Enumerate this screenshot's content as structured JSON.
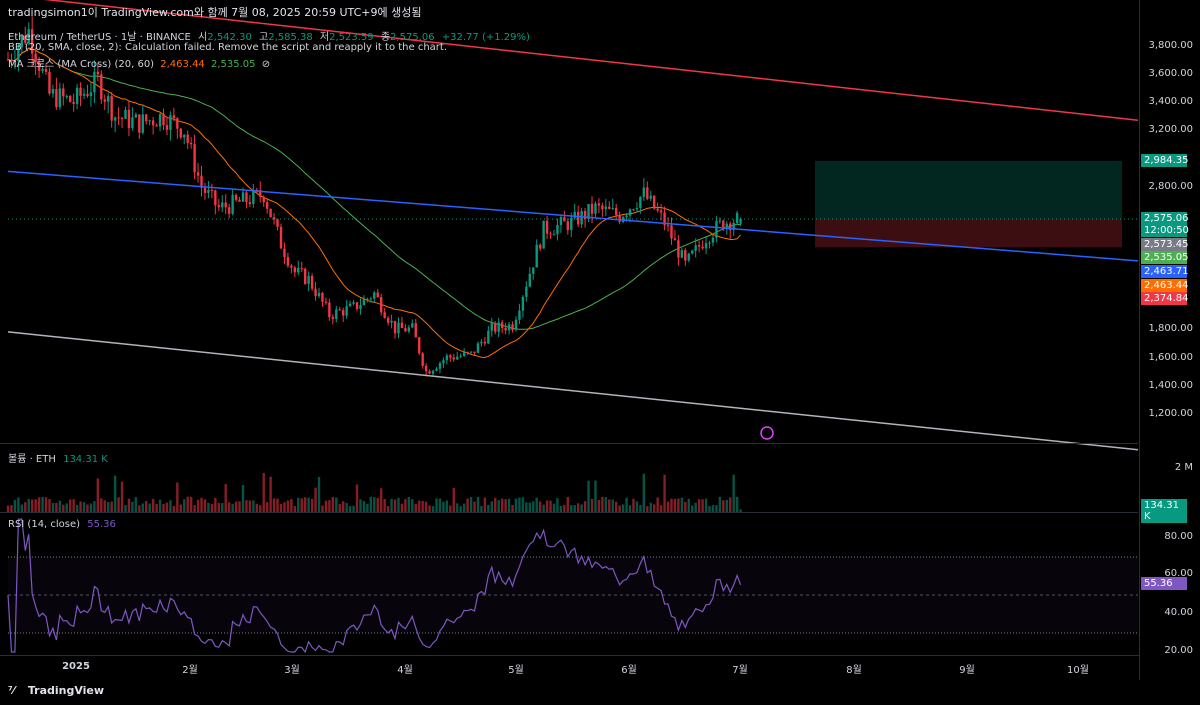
{
  "header": {
    "title": "tradingsimon1이 TradingView.com와 함께 7월 08, 2025 20:59 UTC+9에 생성됨"
  },
  "legend": {
    "symbol": "Ethereum / TetherUS · 1날 · BINANCE",
    "o_label": "시",
    "o_value": "2,542.30",
    "h_label": "고",
    "h_value": "2,585.38",
    "l_label": "저",
    "l_value": "2,523.59",
    "c_label": "종",
    "c_value": "2,575.06",
    "change": "+32.77 (+1.29%)",
    "bb": "BB (20, SMA, close, 2): Calculation failed. Remove the script and reapply it to the chart.",
    "ma_name": "MA 크로스 (MA Cross) (20, 60)",
    "ma_fast": "2,463.44",
    "ma_slow": "2,535.05",
    "ma_suffix": "⊘"
  },
  "volume_legend": {
    "name": "볼륨 · ETH",
    "value": "134.31 K"
  },
  "rsi_legend": {
    "name": "RSI (14, close)",
    "value": "55.36"
  },
  "price_axis": {
    "ticks": [
      "3,800.00",
      "3,600.00",
      "3,400.00",
      "3,200.00",
      "2,800.00",
      "1,800.00",
      "1,600.00",
      "1,400.00",
      "1,200.00"
    ],
    "badges": [
      {
        "text": "2,984.35",
        "color": "#089981"
      },
      {
        "text": "2,575.06",
        "color": "#089981"
      },
      {
        "text": "12:00:50",
        "color": "#089981"
      },
      {
        "text": "2,573.45",
        "color": "#787b86"
      },
      {
        "text": "2,535.05",
        "color": "#4caf50"
      },
      {
        "text": "2,463.71",
        "color": "#2962ff"
      },
      {
        "text": "2,463.44",
        "color": "#ff6d00"
      },
      {
        "text": "2,374.84",
        "color": "#f23645"
      }
    ]
  },
  "volume_axis": {
    "tick": "2 M",
    "badge": "134.31 K"
  },
  "rsi_axis": {
    "ticks": [
      "80.00",
      "60.00",
      "40.00",
      "20.00"
    ],
    "badge": "55.36"
  },
  "time_axis": {
    "labels": [
      "2025",
      "2월",
      "3월",
      "4월",
      "5월",
      "6월",
      "7월",
      "8월",
      "9월",
      "10월"
    ]
  },
  "footer": {
    "brand": "TradingView"
  },
  "colors": {
    "up": "#089981",
    "down": "#f23645",
    "ma_fast": "#ff6d00",
    "ma_slow": "#4caf50",
    "blue_trend": "#2962ff",
    "red_trend": "#f23645",
    "gray_trend": "#b2b5be",
    "rsi": "#7e57c2"
  },
  "chart_data": [
    {
      "type": "candlestick",
      "title": "Ethereum / TetherUS · 1날 · BINANCE",
      "ylim": [
        1100,
        3950
      ],
      "x_range": [
        "2024-12-08",
        "2025-10-31"
      ],
      "close_series": [
        [
          "2024-12-08",
          3700
        ],
        [
          "2024-12-14",
          3900
        ],
        [
          "2024-12-20",
          3450
        ],
        [
          "2024-12-27",
          3400
        ],
        [
          "2025-01-03",
          3550
        ],
        [
          "2025-01-08",
          3300
        ],
        [
          "2025-01-15",
          3250
        ],
        [
          "2025-01-22",
          3300
        ],
        [
          "2025-01-28",
          3200
        ],
        [
          "2025-02-02",
          2800
        ],
        [
          "2025-02-07",
          2650
        ],
        [
          "2025-02-14",
          2700
        ],
        [
          "2025-02-20",
          2750
        ],
        [
          "2025-02-25",
          2400
        ],
        [
          "2025-03-01",
          2200
        ],
        [
          "2025-03-05",
          2150
        ],
        [
          "2025-03-11",
          1900
        ],
        [
          "2025-03-18",
          1950
        ],
        [
          "2025-03-24",
          2050
        ],
        [
          "2025-03-30",
          1800
        ],
        [
          "2025-04-04",
          1800
        ],
        [
          "2025-04-08",
          1500
        ],
        [
          "2025-04-14",
          1600
        ],
        [
          "2025-04-21",
          1620
        ],
        [
          "2025-04-27",
          1800
        ],
        [
          "2025-05-03",
          1830
        ],
        [
          "2025-05-08",
          2200
        ],
        [
          "2025-05-12",
          2500
        ],
        [
          "2025-05-20",
          2550
        ],
        [
          "2025-05-27",
          2650
        ],
        [
          "2025-06-03",
          2600
        ],
        [
          "2025-06-10",
          2750
        ],
        [
          "2025-06-16",
          2550
        ],
        [
          "2025-06-22",
          2250
        ],
        [
          "2025-06-28",
          2450
        ],
        [
          "2025-07-03",
          2550
        ],
        [
          "2025-07-08",
          2575
        ]
      ],
      "last": {
        "open": 2542.3,
        "high": 2585.38,
        "low": 2523.59,
        "close": 2575.06,
        "change": 32.77,
        "change_pct": 1.29
      },
      "ma_cross": {
        "fast_period": 20,
        "slow_period": 60,
        "fast_last": 2463.44,
        "slow_last": 2535.05
      },
      "trendlines": [
        {
          "color": "red",
          "from": [
            "2024-12-08",
            4150
          ],
          "to": [
            "2025-10-31",
            3270
          ]
        },
        {
          "color": "blue",
          "from": [
            "2024-12-08",
            2910
          ],
          "to": [
            "2025-10-31",
            2280
          ]
        },
        {
          "color": "gray",
          "from": [
            "2024-12-08",
            1780
          ],
          "to": [
            "2025-10-31",
            950
          ]
        }
      ],
      "position_box": {
        "entry": 2575.06,
        "target": 2984.35,
        "stop": 2374.84
      }
    },
    {
      "type": "bar",
      "title": "볼륨 · ETH",
      "last": 134310,
      "ylim": [
        0,
        3000000
      ]
    },
    {
      "type": "line",
      "title": "RSI (14, close)",
      "ylim": [
        20,
        90
      ],
      "levels": [
        70,
        50,
        30
      ],
      "last": 55.36
    }
  ]
}
